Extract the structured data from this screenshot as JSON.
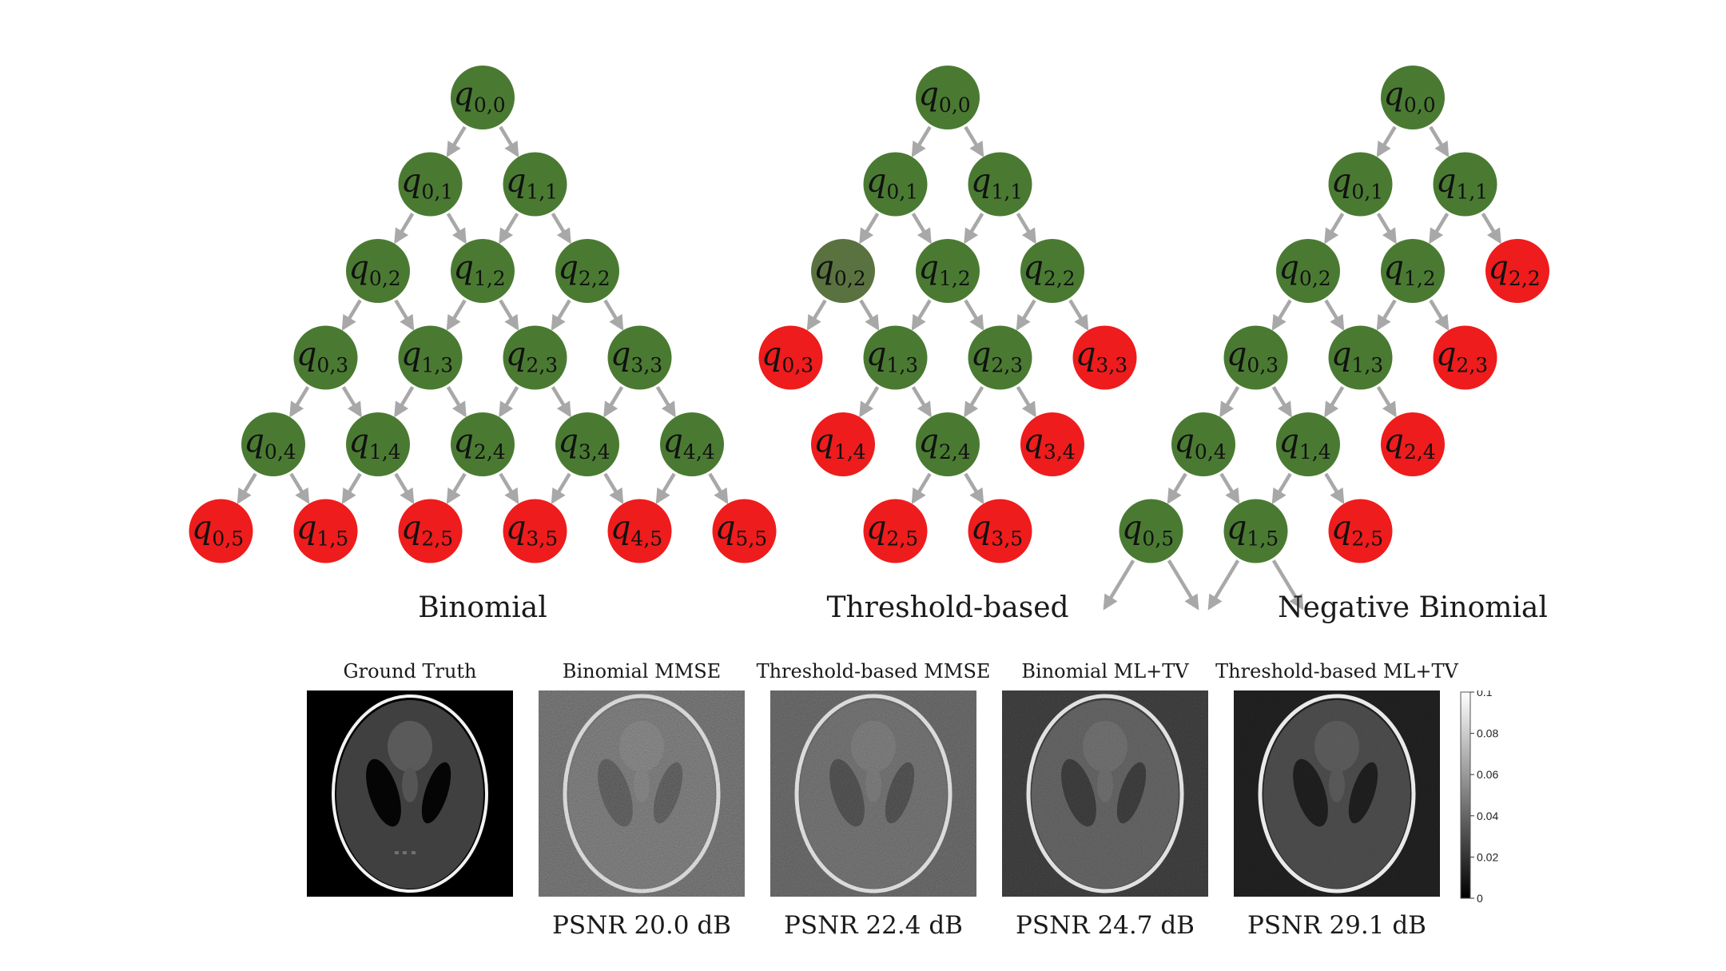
{
  "colors": {
    "included_node": "#4a7a32",
    "included_node_dim": "#5a7240",
    "excluded_node": "#ee1c1c",
    "arrow": "#a8a8a8",
    "node_text": "#111111"
  },
  "trees": [
    {
      "caption": "Binomial",
      "nodes": [
        {
          "i": 0,
          "j": 0,
          "state": "included"
        },
        {
          "i": 0,
          "j": 1,
          "state": "included"
        },
        {
          "i": 1,
          "j": 1,
          "state": "included"
        },
        {
          "i": 0,
          "j": 2,
          "state": "included"
        },
        {
          "i": 1,
          "j": 2,
          "state": "included"
        },
        {
          "i": 2,
          "j": 2,
          "state": "included"
        },
        {
          "i": 0,
          "j": 3,
          "state": "included"
        },
        {
          "i": 1,
          "j": 3,
          "state": "included"
        },
        {
          "i": 2,
          "j": 3,
          "state": "included"
        },
        {
          "i": 3,
          "j": 3,
          "state": "included"
        },
        {
          "i": 0,
          "j": 4,
          "state": "included"
        },
        {
          "i": 1,
          "j": 4,
          "state": "included"
        },
        {
          "i": 2,
          "j": 4,
          "state": "included"
        },
        {
          "i": 3,
          "j": 4,
          "state": "included"
        },
        {
          "i": 4,
          "j": 4,
          "state": "included"
        },
        {
          "i": 0,
          "j": 5,
          "state": "excluded"
        },
        {
          "i": 1,
          "j": 5,
          "state": "excluded"
        },
        {
          "i": 2,
          "j": 5,
          "state": "excluded"
        },
        {
          "i": 3,
          "j": 5,
          "state": "excluded"
        },
        {
          "i": 4,
          "j": 5,
          "state": "excluded"
        },
        {
          "i": 5,
          "j": 5,
          "state": "excluded"
        }
      ],
      "open_ends": []
    },
    {
      "caption": "Threshold-based",
      "nodes": [
        {
          "i": 0,
          "j": 0,
          "state": "included"
        },
        {
          "i": 0,
          "j": 1,
          "state": "included"
        },
        {
          "i": 1,
          "j": 1,
          "state": "included"
        },
        {
          "i": 0,
          "j": 2,
          "state": "included_dim"
        },
        {
          "i": 1,
          "j": 2,
          "state": "included"
        },
        {
          "i": 2,
          "j": 2,
          "state": "included"
        },
        {
          "i": 0,
          "j": 3,
          "state": "excluded"
        },
        {
          "i": 1,
          "j": 3,
          "state": "included"
        },
        {
          "i": 2,
          "j": 3,
          "state": "included"
        },
        {
          "i": 3,
          "j": 3,
          "state": "excluded"
        },
        {
          "i": 1,
          "j": 4,
          "state": "excluded"
        },
        {
          "i": 2,
          "j": 4,
          "state": "included"
        },
        {
          "i": 3,
          "j": 4,
          "state": "excluded"
        },
        {
          "i": 2,
          "j": 5,
          "state": "excluded"
        },
        {
          "i": 3,
          "j": 5,
          "state": "excluded"
        }
      ],
      "open_ends": []
    },
    {
      "caption": "Negative Binomial",
      "nodes": [
        {
          "i": 0,
          "j": 0,
          "state": "included"
        },
        {
          "i": 0,
          "j": 1,
          "state": "included"
        },
        {
          "i": 1,
          "j": 1,
          "state": "included"
        },
        {
          "i": 0,
          "j": 2,
          "state": "included"
        },
        {
          "i": 1,
          "j": 2,
          "state": "included"
        },
        {
          "i": 2,
          "j": 2,
          "state": "excluded"
        },
        {
          "i": 0,
          "j": 3,
          "state": "included"
        },
        {
          "i": 1,
          "j": 3,
          "state": "included"
        },
        {
          "i": 2,
          "j": 3,
          "state": "excluded"
        },
        {
          "i": 0,
          "j": 4,
          "state": "included"
        },
        {
          "i": 1,
          "j": 4,
          "state": "included"
        },
        {
          "i": 2,
          "j": 4,
          "state": "excluded"
        },
        {
          "i": 0,
          "j": 5,
          "state": "included"
        },
        {
          "i": 1,
          "j": 5,
          "state": "included"
        },
        {
          "i": 2,
          "j": 5,
          "state": "excluded"
        }
      ],
      "open_ends": [
        {
          "i": 0,
          "j": 5
        },
        {
          "i": 1,
          "j": 5
        }
      ]
    }
  ],
  "reconstructions": [
    {
      "title": "Ground Truth",
      "psnr": "",
      "noise": 0
    },
    {
      "title": "Binomial MMSE",
      "psnr": "PSNR 20.0 dB",
      "noise": 0.9
    },
    {
      "title": "Threshold-based MMSE",
      "psnr": "PSNR 22.4 dB",
      "noise": 0.75
    },
    {
      "title": "Binomial ML+TV",
      "psnr": "PSNR 24.7 dB",
      "noise": 0.55
    },
    {
      "title": "Threshold-based ML+TV",
      "psnr": "PSNR 29.1 dB",
      "noise": 0.25
    }
  ],
  "colorbar": {
    "min": 0,
    "max": 0.1,
    "ticks": [
      "0",
      "0.02",
      "0.04",
      "0.06",
      "0.08",
      "0.1"
    ]
  }
}
